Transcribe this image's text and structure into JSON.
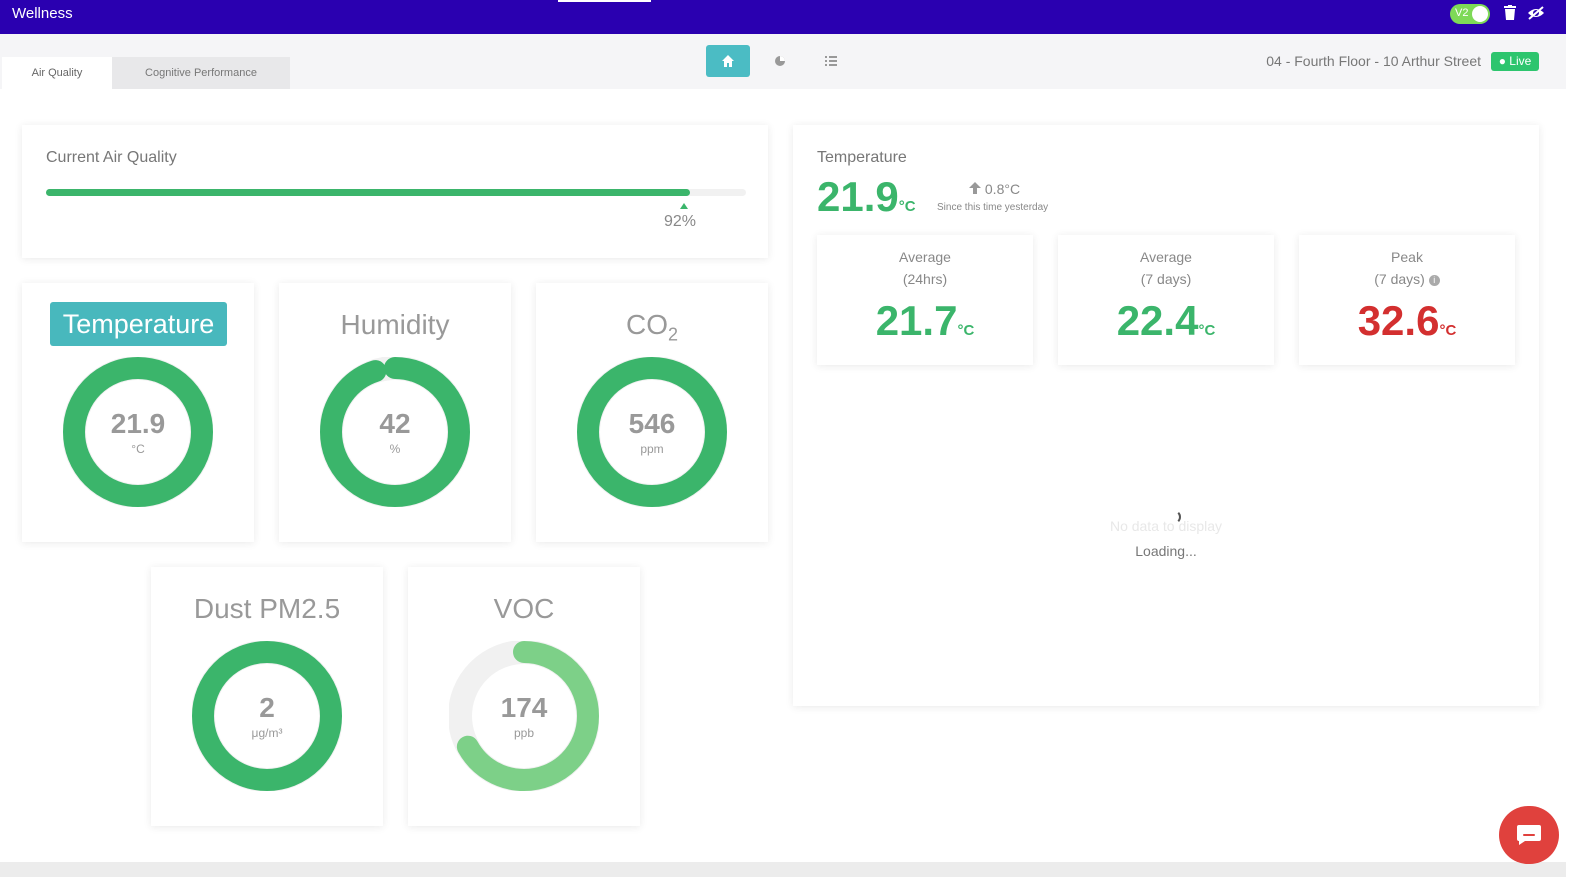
{
  "app": {
    "title": "Wellness",
    "version_toggle_label": "V2"
  },
  "tabs": [
    {
      "label": "Air Quality"
    },
    {
      "label": "Cognitive Performance"
    }
  ],
  "toolbar": {
    "home_icon": "home-icon",
    "pie_icon": "pie-chart-icon",
    "list_icon": "list-icon"
  },
  "location": {
    "name": "04 - Fourth Floor - 10 Arthur Street",
    "live_label": "Live"
  },
  "air_quality": {
    "title": "Current Air Quality",
    "score": 0.92,
    "score_label": "92%"
  },
  "gauges": [
    {
      "title": "Temperature",
      "value": "21.9",
      "unit": "°C",
      "fraction": 1.0,
      "selected": true
    },
    {
      "title": "Humidity",
      "value": "42",
      "unit": "%",
      "fraction": 0.95,
      "selected": false
    },
    {
      "title": "CO",
      "title_sub": "2",
      "value": "546",
      "unit": "ppm",
      "fraction": 1.0,
      "selected": false
    },
    {
      "title": "Dust PM2.5",
      "value": "2",
      "unit": "μg/m³",
      "fraction": 1.0,
      "selected": false
    },
    {
      "title": "VOC",
      "value": "174",
      "unit": "ppb",
      "fraction": 0.67,
      "selected": false
    }
  ],
  "temperature_panel": {
    "title": "Temperature",
    "current": "21.9",
    "unit": "°C",
    "delta": "0.8°C",
    "delta_caption": "Since this time yesterday",
    "stats": [
      {
        "label": "Average",
        "period": "(24hrs)",
        "value": "21.7",
        "unit": "°C",
        "color": "#3bb56b"
      },
      {
        "label": "Average",
        "period": "(7 days)",
        "value": "22.4",
        "unit": "°C",
        "color": "#3bb56b"
      },
      {
        "label": "Peak",
        "period": "(7 days)",
        "value": "32.6",
        "unit": "°C",
        "color": "#d32f2f"
      }
    ],
    "no_data": "No data to display",
    "loading": "Loading..."
  },
  "colors": {
    "brand_bar": "#2a00b0",
    "accent": "#4bbcc4",
    "good": "#3bb56b",
    "voc": "#7dd088",
    "alert": "#d32f2f",
    "live": "#2dc56e"
  }
}
